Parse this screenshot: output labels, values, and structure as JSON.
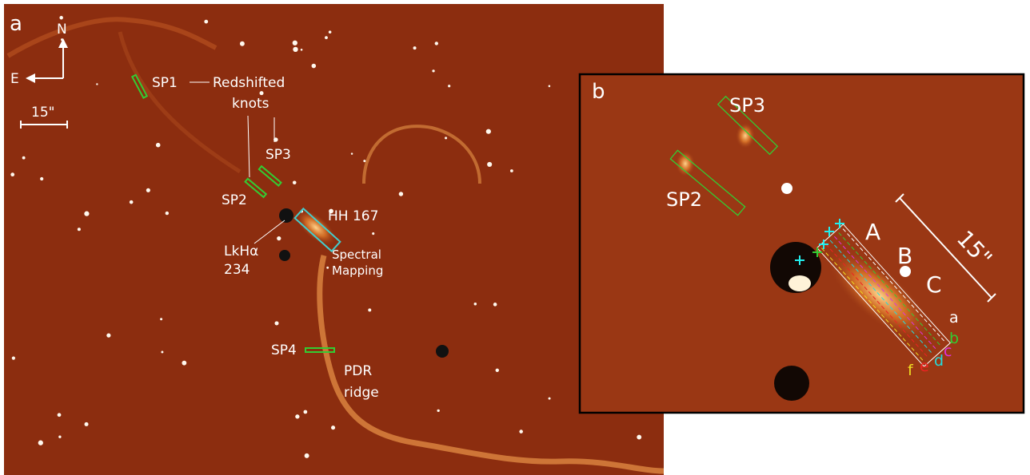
{
  "panel_a": {
    "label": "a",
    "compass": {
      "north": "N",
      "east": "E"
    },
    "scale_bar": "15\"",
    "annotations": {
      "sp1": "SP1",
      "redshifted_knots": [
        "Redshifted",
        "knots"
      ],
      "sp3": "SP3",
      "sp2": "SP2",
      "hh167": "HH 167",
      "lkha234": [
        "LkHα",
        "234"
      ],
      "spectral_mapping": [
        "Spectral",
        "Mapping"
      ],
      "sp4": "SP4",
      "pdr_ridge": [
        "PDR",
        "ridge"
      ]
    }
  },
  "panel_b": {
    "label": "b",
    "annotations": {
      "sp3": "SP3",
      "sp2": "SP2",
      "knot_a": "A",
      "knot_b": "B",
      "knot_c": "C",
      "scale_bar": "15\""
    },
    "slits": [
      "a",
      "b",
      "c",
      "d",
      "e",
      "f"
    ]
  }
}
